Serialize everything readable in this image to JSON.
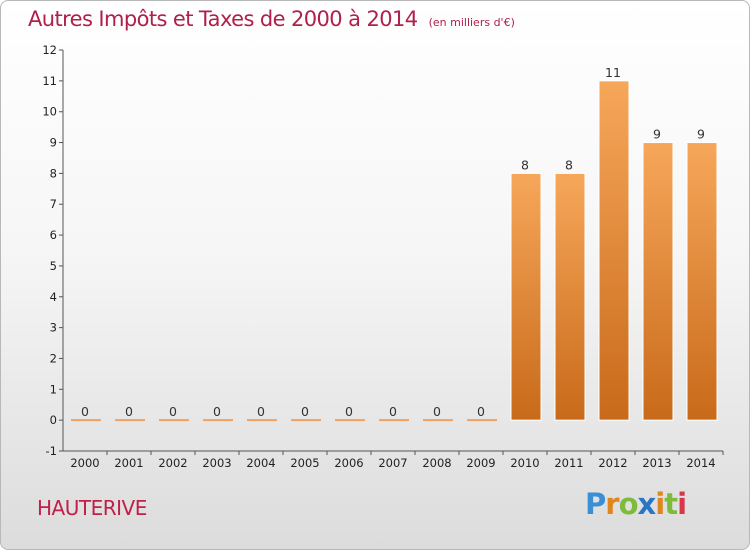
{
  "header": {
    "title": "Autres Impôts et Taxes de 2000 à 2014",
    "unit": "(en milliers d'€)"
  },
  "footer": {
    "place": "HAUTERIVE",
    "logo": [
      "P",
      "r",
      "o",
      "x",
      "i",
      "t",
      "i"
    ]
  },
  "colors": {
    "title": "#b0204a",
    "bar_light": "#f7a75a",
    "bar_dark": "#c86a1a"
  },
  "chart_data": {
    "type": "bar",
    "title": "Autres Impôts et Taxes de 2000 à 2014",
    "ylabel": "",
    "xlabel": "",
    "categories": [
      "2000",
      "2001",
      "2002",
      "2003",
      "2004",
      "2005",
      "2006",
      "2007",
      "2008",
      "2009",
      "2010",
      "2011",
      "2012",
      "2013",
      "2014"
    ],
    "values": [
      0,
      0,
      0,
      0,
      0,
      0,
      0,
      0,
      0,
      0,
      8,
      8,
      11,
      9,
      9
    ],
    "data_labels": [
      "0",
      "0",
      "0",
      "0",
      "0",
      "0",
      "0",
      "0",
      "0",
      "0",
      "8",
      "8",
      "11",
      "9",
      "9"
    ],
    "yticks": [
      "-1",
      "0",
      "1",
      "2",
      "3",
      "4",
      "5",
      "6",
      "7",
      "8",
      "9",
      "10",
      "11",
      "12"
    ],
    "ylim": [
      -1,
      12
    ],
    "grid": false,
    "legend": "none"
  }
}
